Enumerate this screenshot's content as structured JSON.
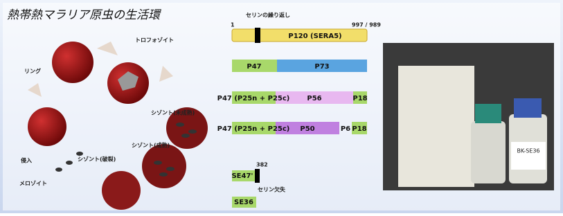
{
  "title": "熱帯熱マラリア原虫の生活環",
  "life_cycle": {
    "stages": [
      "トロフォゾイト",
      "リング",
      "シゾント(未成熟)",
      "シゾント(成熟)",
      "シゾント(破裂)",
      "侵入",
      "メロゾイト"
    ]
  },
  "protein": {
    "repeat_label": "セリンの繰り返し",
    "start": "1",
    "end": "997 / 989",
    "full": "P120 (SERA5)",
    "row1": [
      "P47",
      "P73"
    ],
    "row2": [
      "P47 (P25n + P25c)",
      "P56",
      "P18"
    ],
    "row3": [
      "P47 (P25n + P25c)",
      "P50",
      "P6",
      "P18"
    ],
    "se47": "SE47'",
    "se47_end": "382",
    "deletion": "セリン欠失",
    "se36": "SE36"
  },
  "photo": {
    "vial_label": "BK-SE36"
  }
}
